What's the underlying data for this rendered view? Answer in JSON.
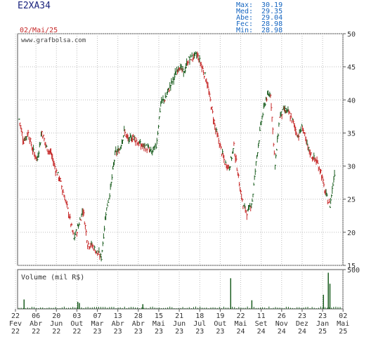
{
  "header": {
    "ticker": "E2XA34",
    "date": "02/Mai/25",
    "stats": [
      {
        "label": "Max:",
        "value": "30.19"
      },
      {
        "label": "Med:",
        "value": "29.35"
      },
      {
        "label": "Abe:",
        "value": "29.04"
      },
      {
        "label": "Fec:",
        "value": "28.98"
      },
      {
        "label": "Min:",
        "value": "28.98"
      }
    ]
  },
  "watermark": "www.grafbolsa.com",
  "volume_title": "Volume (mil R$)",
  "chart_data": [
    {
      "type": "ohlc",
      "ylim": [
        15,
        50
      ],
      "y_ticks": [
        15,
        20,
        25,
        30,
        35,
        40,
        45,
        50
      ],
      "x_ticks": [
        {
          "day": "22",
          "mon": "Fev",
          "yr": "22"
        },
        {
          "day": "06",
          "mon": "Abr",
          "yr": "22"
        },
        {
          "day": "20",
          "mon": "Jun",
          "yr": "22"
        },
        {
          "day": "03",
          "mon": "Out",
          "yr": "22"
        },
        {
          "day": "07",
          "mon": "Mar",
          "yr": "23"
        },
        {
          "day": "13",
          "mon": "Abr",
          "yr": "23"
        },
        {
          "day": "28",
          "mon": "Abr",
          "yr": "23"
        },
        {
          "day": "15",
          "mon": "Mai",
          "yr": "23"
        },
        {
          "day": "21",
          "mon": "Jun",
          "yr": "23"
        },
        {
          "day": "18",
          "mon": "Jul",
          "yr": "23"
        },
        {
          "day": "19",
          "mon": "Out",
          "yr": "23"
        },
        {
          "day": "22",
          "mon": "Mai",
          "yr": "24"
        },
        {
          "day": "11",
          "mon": "Set",
          "yr": "24"
        },
        {
          "day": "26",
          "mon": "Nov",
          "yr": "24"
        },
        {
          "day": "23",
          "mon": "Dez",
          "yr": "24"
        },
        {
          "day": "23",
          "mon": "Jan",
          "yr": "25"
        },
        {
          "day": "02",
          "mon": "Mai",
          "yr": "25"
        }
      ],
      "price_series": [
        37.1,
        33.8,
        35.0,
        32.4,
        31.0,
        35.2,
        32.8,
        31.9,
        29.5,
        27.8,
        25.2,
        22.5,
        19.0,
        21.0,
        23.5,
        18.3,
        18.0,
        17.0,
        16.2,
        23.0,
        26.5,
        31.8,
        32.5,
        35.2,
        33.8,
        34.5,
        33.5,
        33.0,
        32.8,
        32.0,
        33.0,
        39.5,
        40.3,
        42.0,
        43.5,
        45.2,
        44.0,
        46.0,
        46.5,
        46.8,
        45.0,
        43.0,
        39.2,
        35.5,
        33.0,
        30.5,
        29.8,
        33.0,
        28.2,
        24.0,
        22.9,
        24.8,
        31.5,
        36.8,
        40.2,
        41.0,
        30.0,
        37.5,
        38.5,
        38.0,
        36.5,
        34.5,
        36.0,
        33.0,
        31.5,
        30.8,
        29.2,
        25.8,
        24.0,
        28.98
      ],
      "volume_ylim": [
        0,
        500
      ],
      "volume_ticks": [
        500
      ],
      "volume_spikes": [
        {
          "pos": 0.02,
          "v": 120
        },
        {
          "pos": 0.185,
          "v": 90
        },
        {
          "pos": 0.19,
          "v": 75
        },
        {
          "pos": 0.385,
          "v": 60
        },
        {
          "pos": 0.655,
          "v": 390
        },
        {
          "pos": 0.72,
          "v": 110
        },
        {
          "pos": 0.94,
          "v": 180
        },
        {
          "pos": 0.955,
          "v": 460
        },
        {
          "pos": 0.96,
          "v": 320
        }
      ]
    }
  ]
}
